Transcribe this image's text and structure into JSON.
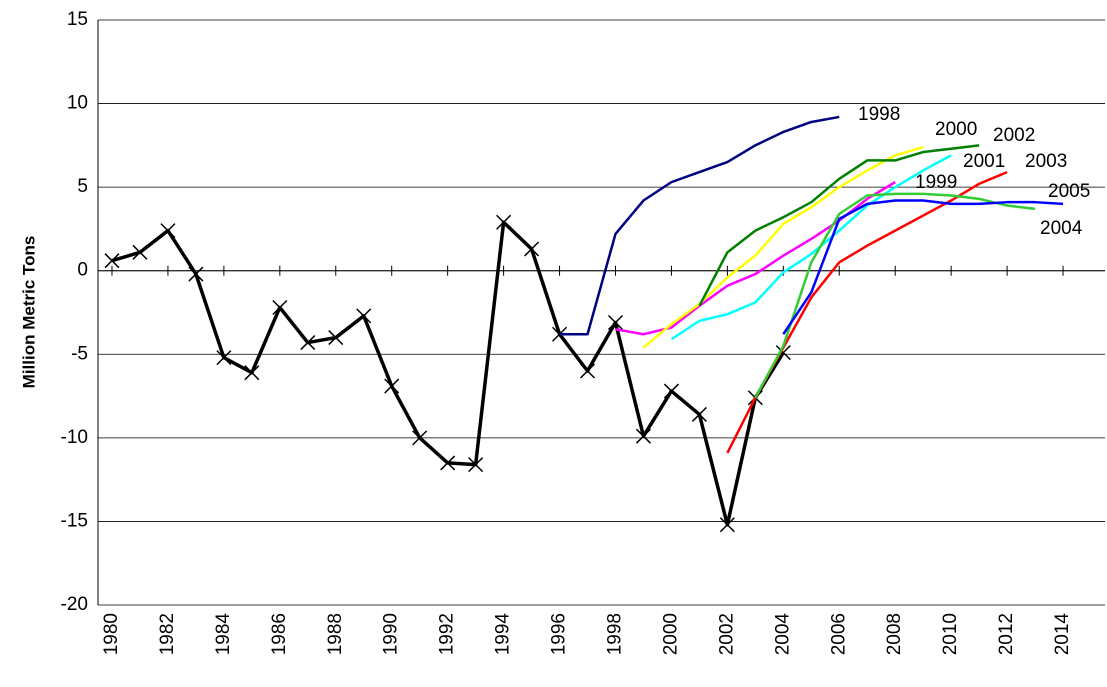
{
  "chart_data": {
    "type": "line",
    "y_label": "Million Metric Tons",
    "xlim": [
      1979.5,
      2015.5
    ],
    "xticks": [
      1980,
      1982,
      1984,
      1986,
      1988,
      1990,
      1992,
      1994,
      1996,
      1998,
      2000,
      2002,
      2004,
      2006,
      2008,
      2010,
      2012,
      2014
    ],
    "ylim": [
      -20,
      15
    ],
    "yticks": [
      -20,
      -15,
      -10,
      -5,
      0,
      5,
      10,
      15
    ],
    "grid": true,
    "series": [
      {
        "color": "#000000",
        "marker": "x",
        "x": [
          1980,
          1981,
          1982,
          1983,
          1984,
          1985,
          1986,
          1987,
          1988,
          1989,
          1990,
          1991,
          1992,
          1993,
          1994,
          1995,
          1996,
          1997,
          1998,
          1999,
          2000,
          2001,
          2002,
          2003,
          2004
        ],
        "values": [
          0.6,
          1.1,
          2.4,
          -0.2,
          -5.2,
          -6.1,
          -2.2,
          -4.3,
          -4.0,
          -2.7,
          -6.9,
          -10.0,
          -11.5,
          -11.6,
          2.9,
          1.3,
          -3.8,
          -6.0,
          -3.1,
          -9.9,
          -7.2,
          -8.6,
          -15.2,
          -7.6,
          -4.9
        ]
      },
      {
        "name": "1998",
        "color": "#000080",
        "x": [
          1996,
          1997,
          1998,
          1999,
          2000,
          2001,
          2002,
          2003,
          2004,
          2005,
          2006
        ],
        "values": [
          -3.8,
          -3.8,
          2.2,
          4.2,
          5.3,
          5.9,
          6.5,
          7.5,
          8.3,
          8.9,
          9.2
        ]
      },
      {
        "name": "1999",
        "color": "#ff00ff",
        "x": [
          1998,
          1999,
          2000,
          2001,
          2002,
          2003,
          2004,
          2005,
          2006,
          2007,
          2008
        ],
        "values": [
          -3.5,
          -3.8,
          -3.4,
          -2.1,
          -0.9,
          -0.2,
          0.9,
          1.9,
          3.0,
          4.3,
          5.3
        ]
      },
      {
        "name": "2000",
        "color": "#ffff00",
        "x": [
          1999,
          2000,
          2001,
          2002,
          2003,
          2004,
          2005,
          2006,
          2007,
          2008,
          2009
        ],
        "values": [
          -4.6,
          -3.2,
          -2.0,
          -0.4,
          0.9,
          2.8,
          3.8,
          5.0,
          6.0,
          6.9,
          7.4
        ]
      },
      {
        "name": "2001",
        "color": "#00ffff",
        "x": [
          2000,
          2001,
          2002,
          2003,
          2004,
          2005,
          2006,
          2007,
          2008,
          2009,
          2010
        ],
        "values": [
          -4.1,
          -3.0,
          -2.6,
          -1.9,
          -0.1,
          1.0,
          2.4,
          3.9,
          5.0,
          6.0,
          6.9
        ]
      },
      {
        "name": "2002",
        "color": "#008000",
        "x": [
          2001,
          2002,
          2003,
          2004,
          2005,
          2006,
          2007,
          2008,
          2009,
          2010,
          2011
        ],
        "values": [
          -2.1,
          1.1,
          2.4,
          3.2,
          4.1,
          5.5,
          6.6,
          6.6,
          7.1,
          7.3,
          7.5
        ]
      },
      {
        "name": "2003",
        "color": "#ff0000",
        "x": [
          2002,
          2003,
          2004,
          2005,
          2006,
          2007,
          2008,
          2009,
          2010,
          2011,
          2012
        ],
        "values": [
          -10.9,
          -7.6,
          -4.6,
          -1.6,
          0.5,
          1.5,
          2.4,
          3.3,
          4.2,
          5.2,
          5.9
        ]
      },
      {
        "name": "2004",
        "color": "#33cc33",
        "x": [
          2003,
          2004,
          2005,
          2006,
          2007,
          2008,
          2009,
          2010,
          2011,
          2012,
          2013
        ],
        "values": [
          -7.6,
          -4.5,
          0.5,
          3.4,
          4.5,
          4.6,
          4.6,
          4.5,
          4.3,
          3.9,
          3.7
        ]
      },
      {
        "name": "2005",
        "color": "#0000ff",
        "x": [
          2004,
          2005,
          2006,
          2007,
          2008,
          2009,
          2010,
          2011,
          2012,
          2013,
          2014
        ],
        "values": [
          -3.8,
          -1.3,
          3.1,
          4.0,
          4.2,
          4.2,
          4.0,
          4.0,
          4.1,
          4.1,
          4.0
        ]
      }
    ]
  }
}
